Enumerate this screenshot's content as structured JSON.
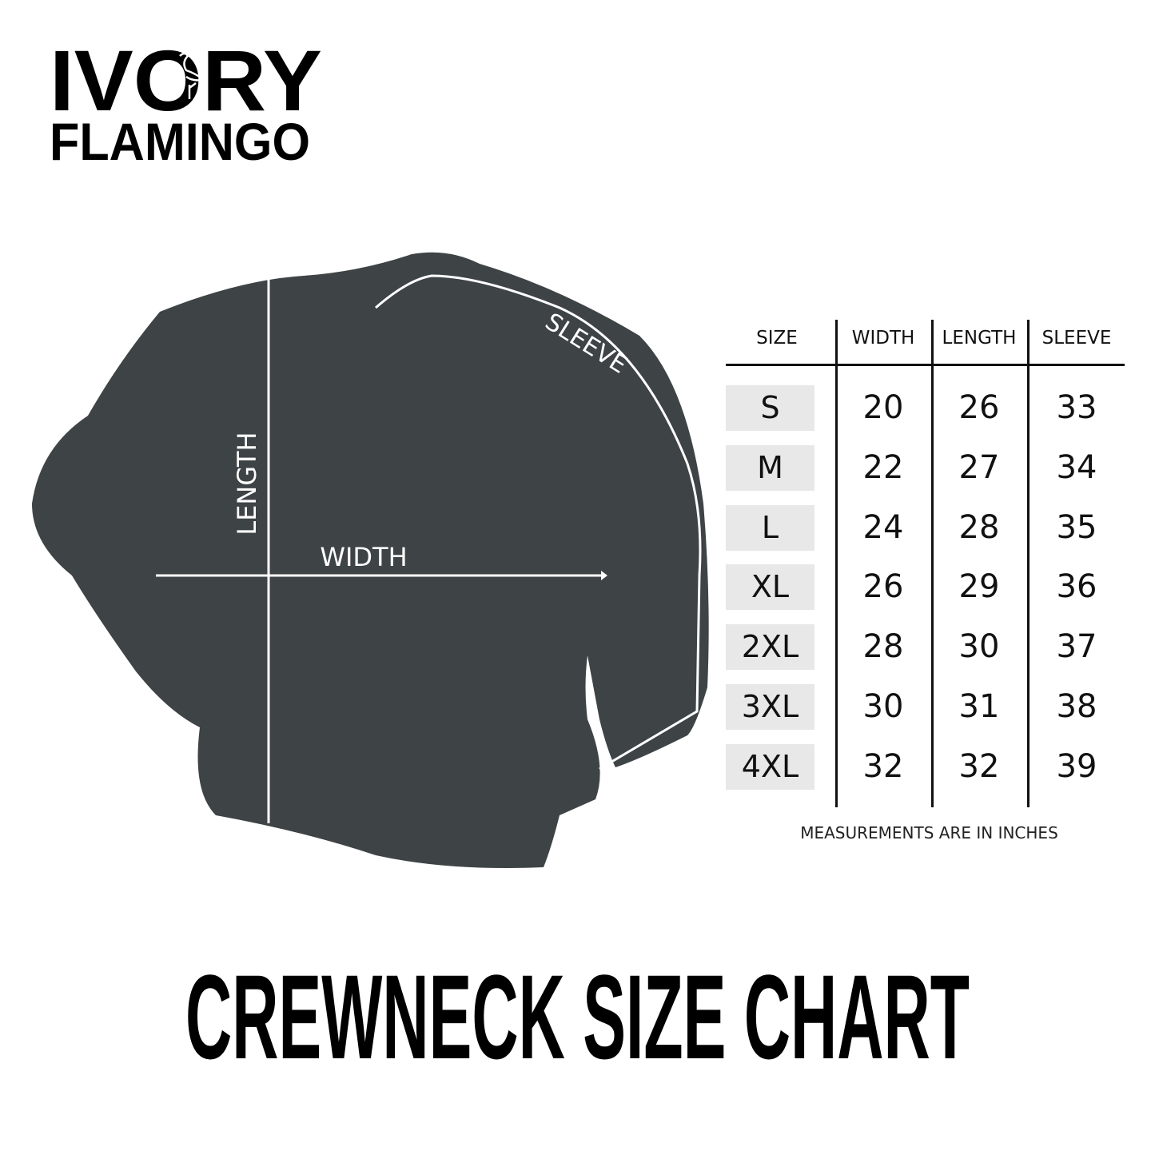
{
  "brand": {
    "line1": "IVORY",
    "line2": "FLAMINGO",
    "logo_icon": "flamingo-icon"
  },
  "garment": {
    "color": "#3e4345",
    "labels": {
      "length": "LENGTH",
      "width": "WIDTH",
      "sleeve": "SLEEVE"
    }
  },
  "table": {
    "headers": [
      "SIZE",
      "WIDTH",
      "LENGTH",
      "SLEEVE"
    ],
    "rows": [
      [
        "S",
        "20",
        "26",
        "33"
      ],
      [
        "M",
        "22",
        "27",
        "34"
      ],
      [
        "L",
        "24",
        "28",
        "35"
      ],
      [
        "XL",
        "26",
        "29",
        "36"
      ],
      [
        "2XL",
        "28",
        "30",
        "37"
      ],
      [
        "3XL",
        "30",
        "31",
        "38"
      ],
      [
        "4XL",
        "32",
        "32",
        "39"
      ]
    ],
    "note": "MEASUREMENTS ARE IN INCHES"
  },
  "title": "CREWNECK SIZE CHART"
}
